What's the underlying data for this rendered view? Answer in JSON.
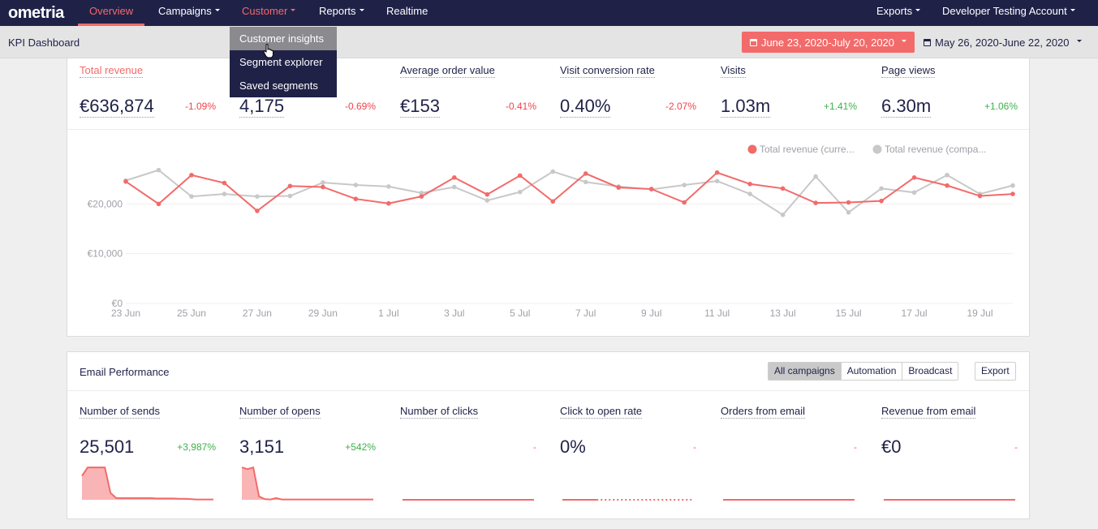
{
  "nav": {
    "logo": "ometria",
    "items": [
      {
        "label": "Overview",
        "active": true,
        "caret": false
      },
      {
        "label": "Campaigns",
        "active": false,
        "caret": true
      },
      {
        "label": "Customer",
        "active": true,
        "caret": true
      },
      {
        "label": "Reports",
        "active": false,
        "caret": true
      },
      {
        "label": "Realtime",
        "active": false,
        "caret": false
      }
    ],
    "right": [
      {
        "label": "Exports",
        "caret": true
      },
      {
        "label": "Developer Testing Account",
        "caret": true
      }
    ]
  },
  "dropdown": {
    "items": [
      "Customer insights",
      "Segment explorer",
      "Saved segments"
    ],
    "hovered": 0
  },
  "subheader": {
    "title": "KPI Dashboard",
    "date_range_current": "June 23, 2020-July 20, 2020",
    "date_range_compare": "May 26, 2020-June 22, 2020"
  },
  "kpis": [
    {
      "label": "Total revenue",
      "value": "€636,874",
      "change": "-1.09%",
      "trend": "neg",
      "selected": true
    },
    {
      "label": "",
      "value": "4,175",
      "change": "-0.69%",
      "trend": "neg",
      "selected": false
    },
    {
      "label": "Average order value",
      "value": "€153",
      "change": "-0.41%",
      "trend": "neg",
      "selected": false
    },
    {
      "label": "Visit conversion rate",
      "value": "0.40%",
      "change": "-2.07%",
      "trend": "neg",
      "selected": false
    },
    {
      "label": "Visits",
      "value": "1.03m",
      "change": "+1.41%",
      "trend": "pos",
      "selected": false
    },
    {
      "label": "Page views",
      "value": "6.30m",
      "change": "+1.06%",
      "trend": "pos",
      "selected": false
    }
  ],
  "chart_data": {
    "type": "line",
    "legend_position": "top-right",
    "colors": {
      "current": "#f36a6a",
      "compare": "#c8c8c8"
    },
    "ylim": [
      0,
      30000
    ],
    "yticks": [
      "€0",
      "€10,000",
      "€20,000"
    ],
    "ytick_values": [
      0,
      10000,
      20000
    ],
    "xticks": [
      "23 Jun",
      "25 Jun",
      "27 Jun",
      "29 Jun",
      "1 Jul",
      "3 Jul",
      "5 Jul",
      "7 Jul",
      "9 Jul",
      "11 Jul",
      "13 Jul",
      "15 Jul",
      "17 Jul",
      "19 Jul"
    ],
    "x": [
      "23 Jun",
      "24 Jun",
      "25 Jun",
      "26 Jun",
      "27 Jun",
      "28 Jun",
      "29 Jun",
      "30 Jun",
      "1 Jul",
      "2 Jul",
      "3 Jul",
      "4 Jul",
      "5 Jul",
      "6 Jul",
      "7 Jul",
      "8 Jul",
      "9 Jul",
      "10 Jul",
      "11 Jul",
      "12 Jul",
      "13 Jul",
      "14 Jul",
      "15 Jul",
      "16 Jul",
      "17 Jul",
      "18 Jul",
      "19 Jul",
      "20 Jul"
    ],
    "series": [
      {
        "name": "Total revenue (curre...",
        "values": [
          24500,
          20000,
          25800,
          24200,
          18600,
          23600,
          23400,
          21000,
          20100,
          21500,
          25300,
          21900,
          25700,
          20500,
          26100,
          23300,
          23000,
          20300,
          26300,
          24000,
          23100,
          20200,
          20300,
          20600,
          25300,
          23700,
          21600,
          22000
        ]
      },
      {
        "name": "Total revenue (compa...",
        "values": [
          24700,
          26800,
          21500,
          22000,
          21500,
          21600,
          24300,
          23800,
          23500,
          22200,
          23400,
          20700,
          22400,
          26500,
          24400,
          23500,
          22900,
          23800,
          24600,
          22000,
          17800,
          25500,
          18300,
          23100,
          22300,
          25800,
          22000,
          23700
        ]
      }
    ]
  },
  "email": {
    "title": "Email Performance",
    "filters": [
      "All campaigns",
      "Automation",
      "Broadcast"
    ],
    "active_filter": 0,
    "export_label": "Export",
    "kpis": [
      {
        "label": "Number of sends",
        "value": "25,501",
        "change": "+3,987%",
        "trend": "pos",
        "spark": [
          0.7,
          0.95,
          0.95,
          0.95,
          0.95,
          0.2,
          0.05,
          0.05,
          0.05,
          0.05,
          0.05,
          0.05,
          0.05,
          0.04,
          0.04,
          0.04,
          0.04,
          0.03,
          0.03,
          0.02,
          0.01,
          0.01,
          0.01,
          0.01
        ],
        "fill": true
      },
      {
        "label": "Number of opens",
        "value": "3,151",
        "change": "+542%",
        "trend": "pos",
        "spark": [
          0.95,
          0.9,
          0.95,
          0.1,
          0.02,
          0.01,
          0.05,
          0.01,
          0.01,
          0.01,
          0.01,
          0.01,
          0.01,
          0.01,
          0.01,
          0.01,
          0.01,
          0.01,
          0.01,
          0.01,
          0.01,
          0.01,
          0.01,
          0.01
        ],
        "fill": true
      },
      {
        "label": "Number of clicks",
        "value": "",
        "change": "-",
        "trend": "dash",
        "spark": [
          0,
          0,
          0,
          0,
          0,
          0,
          0,
          0,
          0,
          0,
          0,
          0,
          0,
          0,
          0,
          0,
          0,
          0,
          0,
          0,
          0,
          0,
          0,
          0
        ],
        "fill": false
      },
      {
        "label": "Click to open rate",
        "value": "0%",
        "change": "-",
        "trend": "dash",
        "spark": [
          0,
          0,
          0,
          0,
          0,
          0,
          0,
          0,
          0,
          0,
          0,
          0,
          0,
          0,
          0,
          0,
          0,
          0,
          0,
          0,
          0,
          0,
          0,
          0
        ],
        "fill": false,
        "dotted_after": 0.25
      },
      {
        "label": "Orders from email",
        "value": "",
        "change": "-",
        "trend": "dash",
        "spark": [
          0,
          0,
          0,
          0,
          0,
          0,
          0,
          0,
          0,
          0,
          0,
          0,
          0,
          0,
          0,
          0,
          0,
          0,
          0,
          0,
          0,
          0,
          0,
          0
        ],
        "fill": false
      },
      {
        "label": "Revenue from email",
        "value": "€0",
        "change": "-",
        "trend": "dash",
        "spark": [
          0,
          0,
          0,
          0,
          0,
          0,
          0,
          0,
          0,
          0,
          0,
          0,
          0,
          0,
          0,
          0,
          0,
          0,
          0,
          0,
          0,
          0,
          0,
          0
        ],
        "fill": false
      }
    ]
  }
}
